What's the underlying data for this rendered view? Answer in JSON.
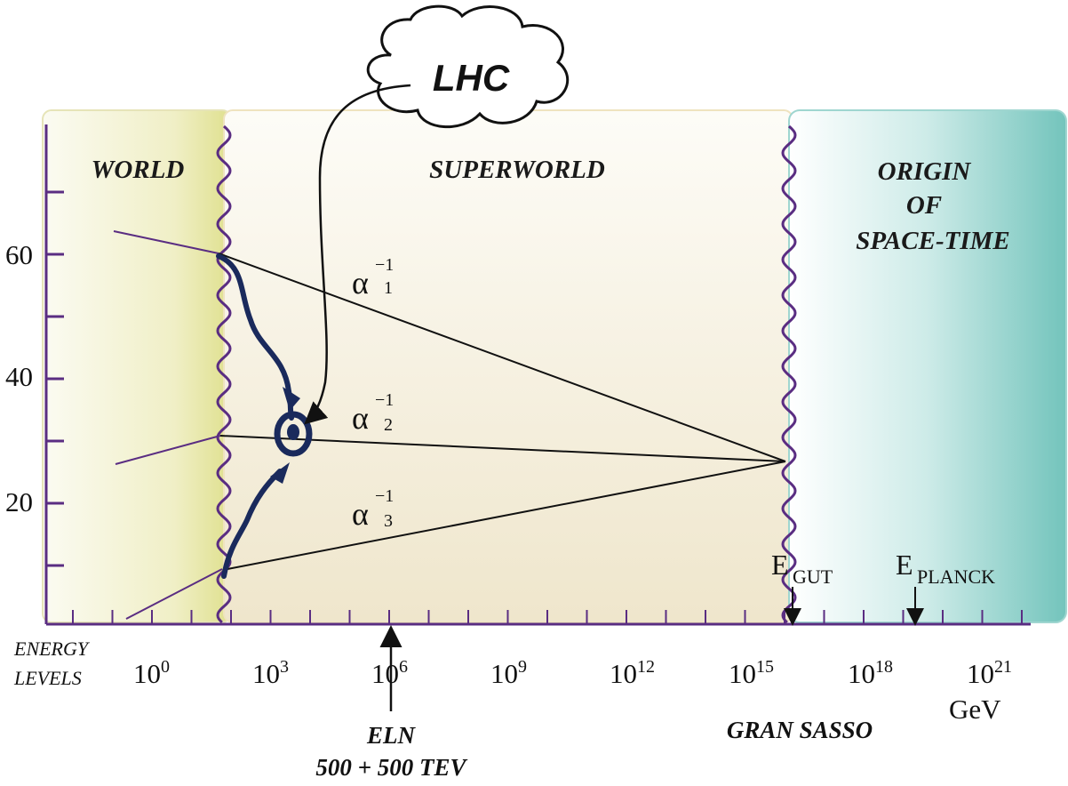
{
  "regions": {
    "world": "WORLD",
    "superworld": "SUPERWORLD",
    "origin_lines": [
      "ORIGIN",
      "OF",
      "SPACE-TIME"
    ]
  },
  "y_axis": {
    "ticks": [
      "60",
      "40",
      "20"
    ]
  },
  "x_axis": {
    "title_lines": [
      "ENERGY",
      "LEVELS"
    ],
    "unit": "GeV",
    "ticks": [
      {
        "base": "10",
        "exp": "0"
      },
      {
        "base": "10",
        "exp": "3"
      },
      {
        "base": "10",
        "exp": "6"
      },
      {
        "base": "10",
        "exp": "9"
      },
      {
        "base": "10",
        "exp": "12"
      },
      {
        "base": "10",
        "exp": "15"
      },
      {
        "base": "10",
        "exp": "18"
      },
      {
        "base": "10",
        "exp": "21"
      }
    ]
  },
  "couplings": [
    {
      "symbol": "α",
      "sup": "−1",
      "sub": "1"
    },
    {
      "symbol": "α",
      "sup": "−1",
      "sub": "2"
    },
    {
      "symbol": "α",
      "sup": "−1",
      "sub": "3"
    }
  ],
  "lhc_label": "LHC",
  "energy_marks": {
    "gut": {
      "base": "E",
      "sub": "GUT"
    },
    "planck": {
      "base": "E",
      "sub": "PLANCK"
    }
  },
  "annotations": {
    "eln_lines": [
      "ELN",
      "500 + 500 TEV"
    ],
    "gran_sasso": "GRAN SASSO"
  },
  "colors": {
    "wavy_boundary": "#5a2d82",
    "world_region": "#e8e8b0",
    "superworld_region": "#f3ead2",
    "origin_region": "#a8dcd6",
    "lhc_path": "#1a2a5c"
  }
}
